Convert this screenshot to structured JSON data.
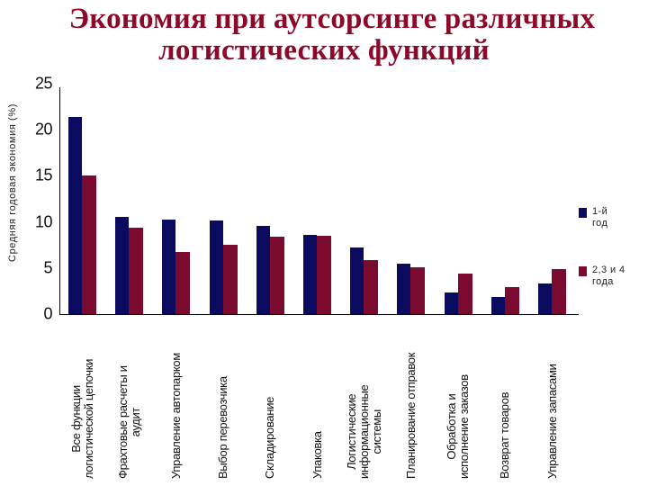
{
  "title": {
    "line1": "Экономия при аутсорсинге различных",
    "line2": "логистических функций"
  },
  "colors": {
    "title": "#8b0a2a",
    "series_1": "#0a0a5e",
    "series_2": "#7a0a2e"
  },
  "legend": [
    {
      "label_line1": "1-й",
      "label_line2": "год",
      "color": "#0a0a5e"
    },
    {
      "label_line1": "2,3 и 4",
      "label_line2": "года",
      "color": "#7a0a2e"
    }
  ],
  "y_axis": {
    "label": "Средняя годовая экономия (%)",
    "ticks": [
      "0",
      "5",
      "10",
      "15",
      "20",
      "25"
    ]
  },
  "categories": [
    {
      "line1": "Все функции",
      "line2": "логистической цепочки"
    },
    {
      "line1": "Фрахтовые расчеты и",
      "line2": "аудит"
    },
    {
      "line1": "Управление автопарком",
      "line2": ""
    },
    {
      "line1": "Выбор перевозчика",
      "line2": ""
    },
    {
      "line1": "Складирование",
      "line2": ""
    },
    {
      "line1": "Упаковка",
      "line2": ""
    },
    {
      "line1": "Логистические",
      "line2": "информационные",
      "line3": "системы"
    },
    {
      "line1": "Планирование отправок",
      "line2": ""
    },
    {
      "line1": "Обработка и",
      "line2": "исполнение заказов"
    },
    {
      "line1": "Возврат товаров",
      "line2": ""
    },
    {
      "line1": "Управление запасами",
      "line2": ""
    }
  ],
  "chart_data": {
    "type": "bar",
    "title": "Экономия при аутсорсинге различных логистических функций",
    "xlabel": "",
    "ylabel": "Средняя годовая экономия (%)",
    "ylim": [
      0,
      25
    ],
    "yticks": [
      0,
      5,
      10,
      15,
      20,
      25
    ],
    "grid": false,
    "legend_position": "right",
    "categories": [
      "Все функции логистической цепочки",
      "Фрахтовые расчеты и аудит",
      "Управление автопарком",
      "Выбор перевозчика",
      "Складирование",
      "Упаковка",
      "Логистические информационные системы",
      "Планирование отправок",
      "Обработка и исполнение заказов",
      "Возврат товаров",
      "Управление запасами"
    ],
    "series": [
      {
        "name": "1-й год",
        "color": "#0a0a5e",
        "values": [
          21.4,
          10.5,
          10.3,
          10.2,
          9.6,
          8.6,
          7.2,
          5.5,
          2.3,
          1.9,
          3.3
        ]
      },
      {
        "name": "2,3 и 4 года",
        "color": "#7a0a2e",
        "values": [
          15.0,
          9.4,
          6.7,
          7.5,
          8.4,
          8.5,
          5.9,
          5.1,
          4.4,
          2.9,
          4.9
        ]
      }
    ]
  }
}
